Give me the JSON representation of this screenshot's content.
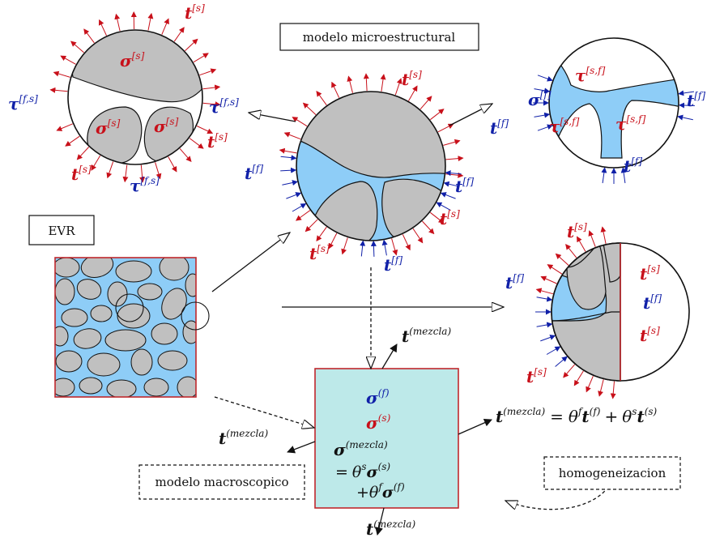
{
  "colors": {
    "solid": "#c0c0c0",
    "fluid": "#8ecdf7",
    "box": "#bde9e9",
    "red": "#c8101a",
    "blue": "#1020a8",
    "dark": "#111111",
    "border_red": "#c0282c"
  },
  "boxes": {
    "micro": "modelo microestructural",
    "evr": "EVR",
    "macro": "modelo macroscopico",
    "homog": "homogeneizacion"
  },
  "symbols": {
    "t": "t",
    "sigma": "σ",
    "tau": "τ",
    "sup_s": "[s]",
    "sup_f": "[f]",
    "sup_fs": "[f,s]",
    "sup_sf": "[s,f]",
    "sup_ps": "(s)",
    "sup_pf": "(f)",
    "sup_mezcla": "(mezcla)",
    "eq": "=",
    "plus": "+",
    "theta": "θ",
    "th_s": "s",
    "th_f": "f"
  }
}
